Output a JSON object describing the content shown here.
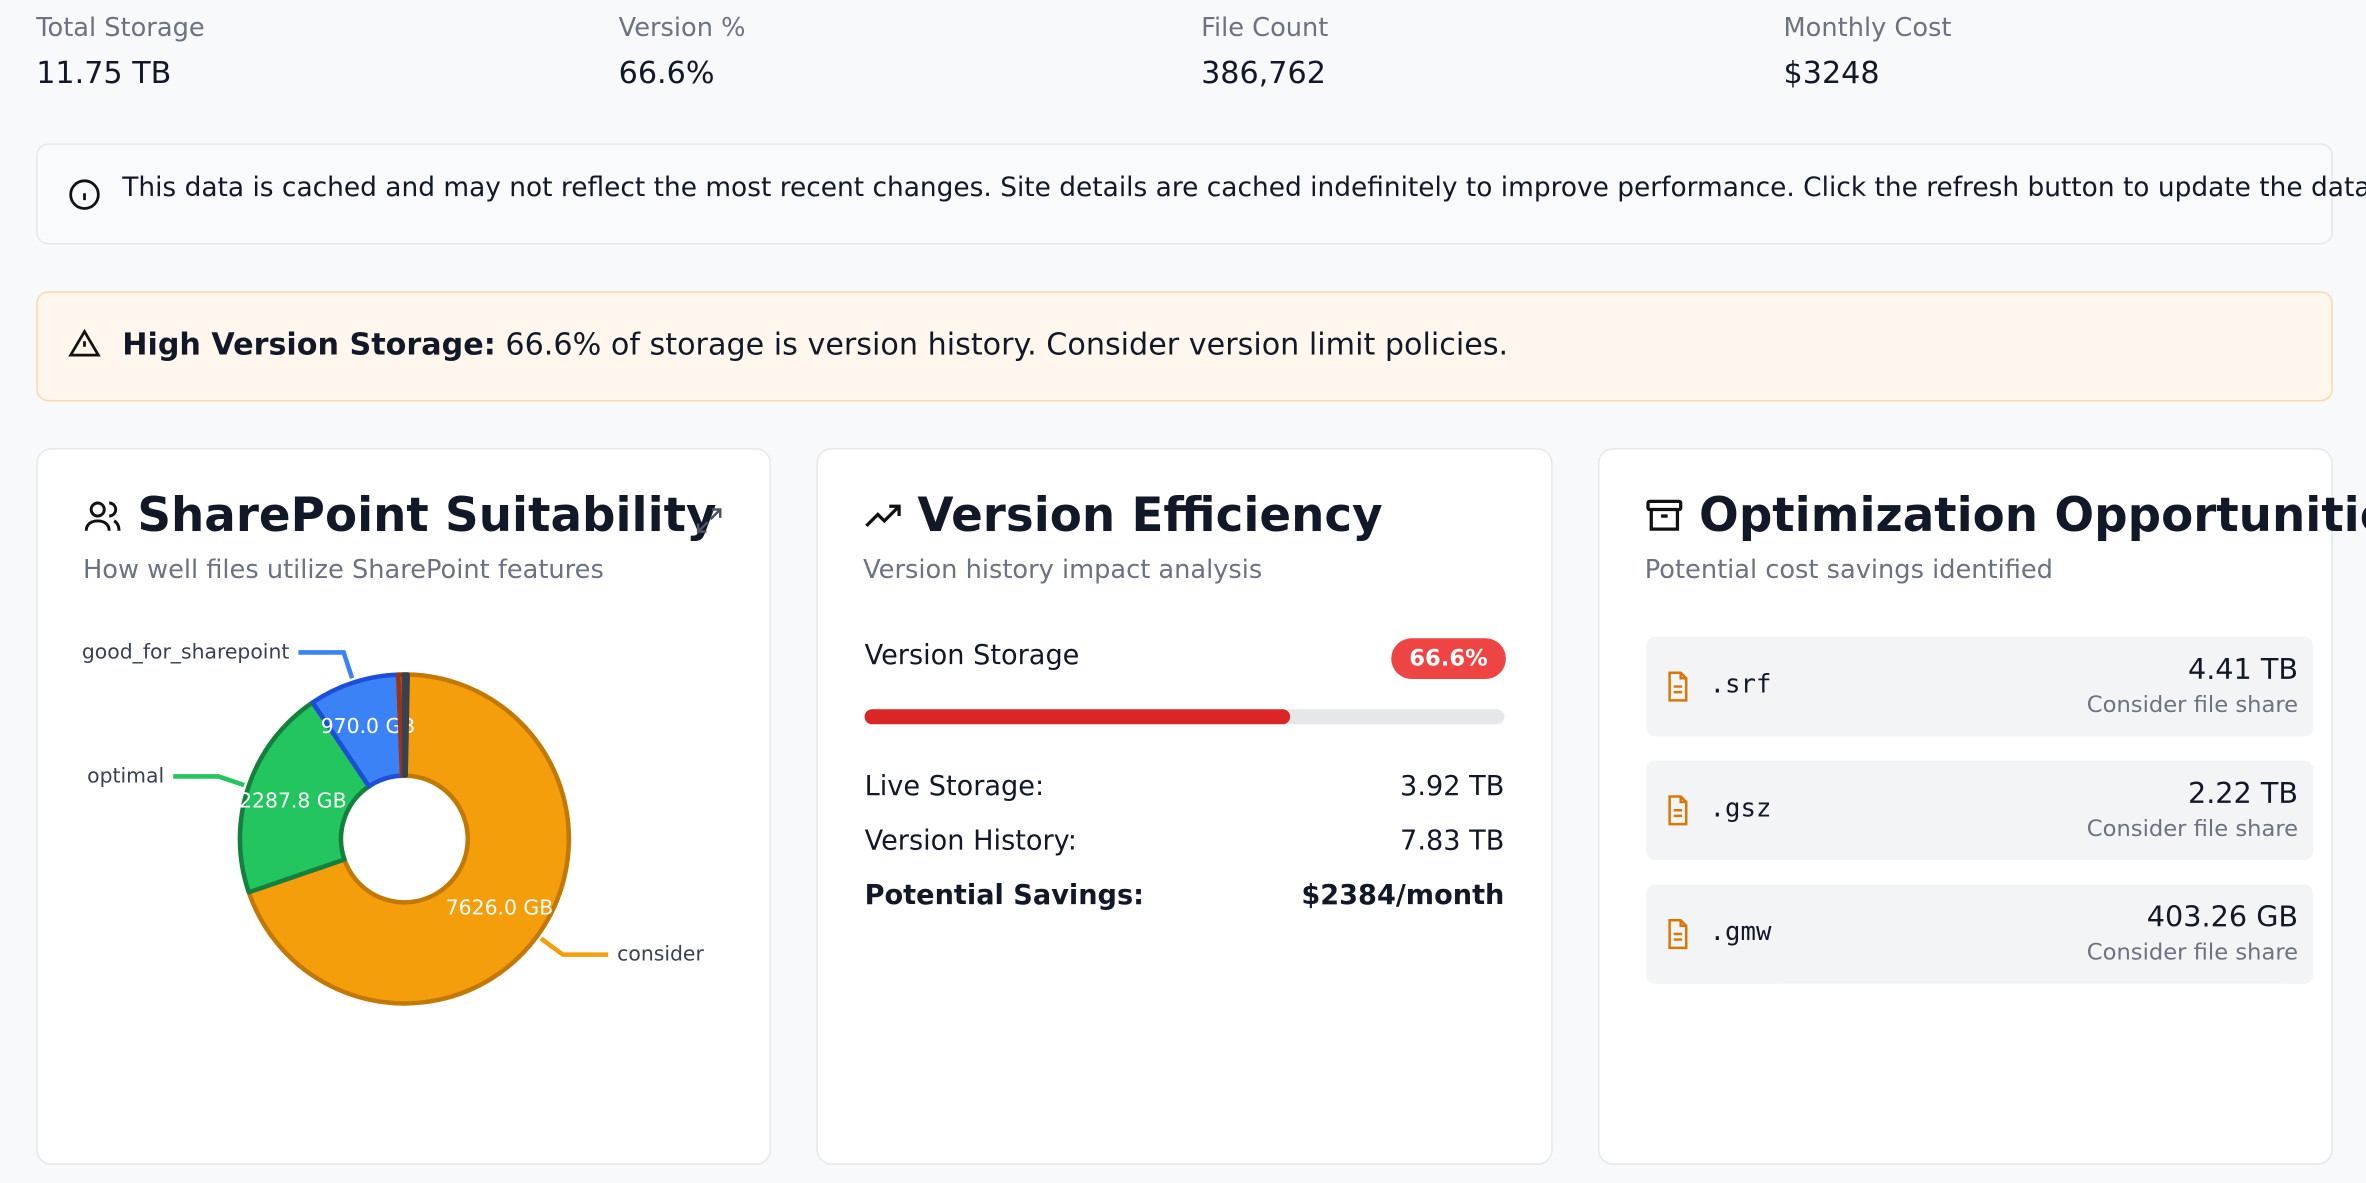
{
  "stats": [
    {
      "label": "Total Storage",
      "value": "11.75 TB"
    },
    {
      "label": "Version %",
      "value": "66.6%"
    },
    {
      "label": "File Count",
      "value": "386,762"
    },
    {
      "label": "Monthly Cost",
      "value": "$3248"
    }
  ],
  "info_banner": "This data is cached and may not reflect the most recent changes. Site details are cached indefinitely to improve performance. Click the refresh button to update the data.",
  "warning": {
    "title": "High Version Storage:",
    "text": "66.6% of storage is version history. Consider version limit policies."
  },
  "chart_data": {
    "type": "pie",
    "title": "SharePoint Suitability",
    "subtitle": "How well files utilize SharePoint features",
    "categories": [
      "consider",
      "optimal",
      "good_for_sharepoint",
      null,
      null
    ],
    "values": [
      7626.0,
      2287.8,
      970.0,
      60,
      40
    ],
    "value_labels": [
      "7626.0 GB",
      "2287.8 GB",
      "970.0 GB",
      null,
      null
    ],
    "colors": [
      "#f59e0b",
      "#22c55e",
      "#3b82f6",
      "#ea580c",
      "#6b7280"
    ],
    "stroke_colors": [
      "#c27803",
      "#15803d",
      "#1d4ed8",
      "#9a3412",
      "#374151"
    ]
  },
  "version_efficiency": {
    "title": "Version Efficiency",
    "subtitle": "Version history impact analysis",
    "bar_label": "Version Storage",
    "badge": "66.6%",
    "progress": {
      "value": 66.6,
      "xlim": [
        0,
        100
      ]
    },
    "rows": [
      {
        "label": "Live Storage:",
        "value": "3.92 TB"
      },
      {
        "label": "Version History:",
        "value": "7.83 TB"
      },
      {
        "label": "Potential Savings:",
        "value": "$2384/month"
      }
    ]
  },
  "optimization": {
    "title": "Optimization Opportunities",
    "subtitle": "Potential cost savings identified",
    "items": [
      {
        "ext": ".srf",
        "size": "4.41 TB",
        "note": "Consider file share"
      },
      {
        "ext": ".gsz",
        "size": "2.22 TB",
        "note": "Consider file share"
      },
      {
        "ext": ".gmw",
        "size": "403.26 GB",
        "note": "Consider file share"
      }
    ]
  }
}
